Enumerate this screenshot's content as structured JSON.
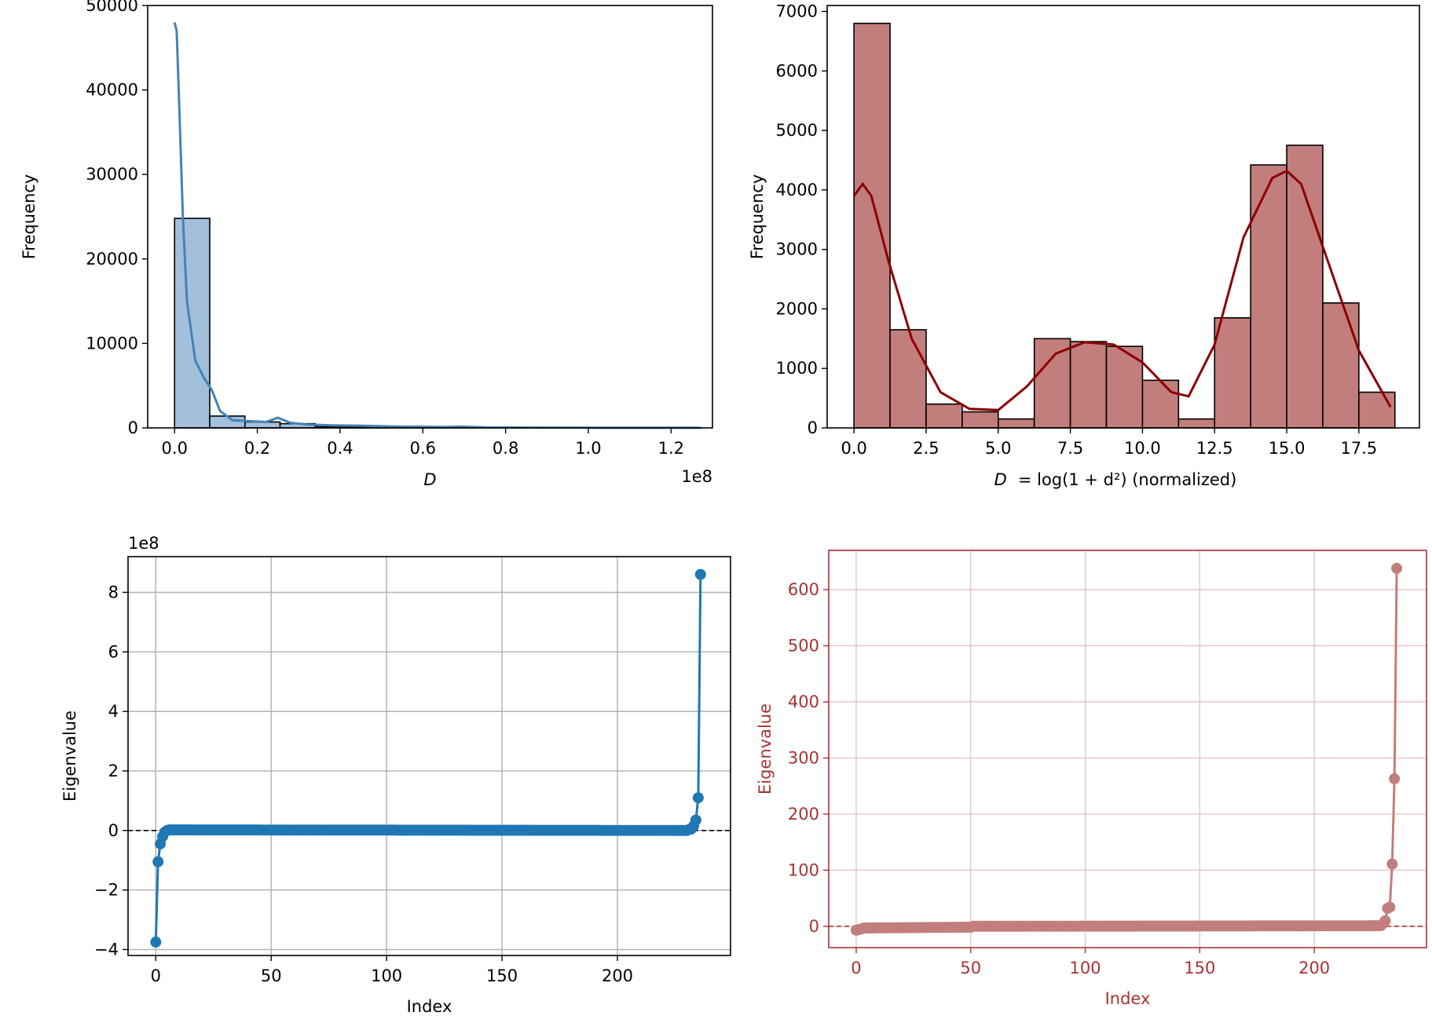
{
  "chart_data": [
    {
      "type": "bar",
      "id": "top-left",
      "xlabel": "D",
      "ylabel": "Frequency",
      "offset_label": "1e8",
      "xlim": [
        -0.065,
        1.3
      ],
      "ylim": [
        0,
        50000
      ],
      "xticks": [
        0.0,
        0.2,
        0.4,
        0.6,
        0.8,
        1.0,
        1.2
      ],
      "xtick_labels": [
        "0.0",
        "0.2",
        "0.4",
        "0.6",
        "0.8",
        "1.0",
        "1.2"
      ],
      "yticks": [
        0,
        10000,
        20000,
        30000,
        40000,
        50000
      ],
      "ytick_labels": [
        "0",
        "10000",
        "20000",
        "30000",
        "40000",
        "50000"
      ],
      "bin_edges": [
        0.0,
        0.085,
        0.17,
        0.255,
        0.34,
        0.425,
        0.51,
        0.595,
        0.68,
        0.765,
        0.85,
        0.935,
        1.02,
        1.105,
        1.19,
        1.275
      ],
      "counts": [
        24800,
        1400,
        700,
        500,
        150,
        120,
        60,
        40,
        30,
        20,
        15,
        10,
        8,
        5,
        5
      ],
      "kde": {
        "x": [
          0.0,
          0.005,
          0.01,
          0.02,
          0.03,
          0.05,
          0.07,
          0.09,
          0.11,
          0.14,
          0.18,
          0.22,
          0.25,
          0.28,
          0.32,
          0.38,
          0.45,
          0.55,
          0.65,
          0.69,
          0.75,
          0.85,
          1.0,
          1.15,
          1.27
        ],
        "y": [
          48000,
          47000,
          40000,
          25000,
          15000,
          8000,
          6000,
          4500,
          2000,
          900,
          800,
          700,
          1200,
          600,
          400,
          300,
          250,
          150,
          100,
          150,
          60,
          40,
          20,
          10,
          5
        ]
      },
      "colors": {
        "bar": "#a2bfdb",
        "kde": "#4682b4"
      }
    },
    {
      "type": "bar",
      "id": "top-right",
      "xlabel_math": "D",
      "xlabel_rest": "= log(1 + d²) (normalized)",
      "ylabel": "Frequency",
      "xlim": [
        -0.93,
        19.6
      ],
      "ylim": [
        0,
        7100
      ],
      "xticks": [
        0.0,
        2.5,
        5.0,
        7.5,
        10.0,
        12.5,
        15.0,
        17.5
      ],
      "xtick_labels": [
        "0.0",
        "2.5",
        "5.0",
        "7.5",
        "10.0",
        "12.5",
        "15.0",
        "17.5"
      ],
      "yticks": [
        0,
        1000,
        2000,
        3000,
        4000,
        5000,
        6000,
        7000
      ],
      "ytick_labels": [
        "0",
        "1000",
        "2000",
        "3000",
        "4000",
        "5000",
        "6000",
        "7000"
      ],
      "bin_edges": [
        0.0,
        1.25,
        2.5,
        3.75,
        5.0,
        6.25,
        7.5,
        8.75,
        10.0,
        11.25,
        12.5,
        13.75,
        15.0,
        16.25,
        17.5,
        18.75
      ],
      "counts": [
        6800,
        1650,
        400,
        270,
        150,
        1500,
        1450,
        1370,
        800,
        150,
        1850,
        4420,
        4750,
        2100,
        600
      ],
      "kde": {
        "x": [
          0.0,
          0.3,
          0.6,
          1.2,
          2.0,
          3.0,
          4.0,
          5.0,
          6.0,
          7.0,
          8.0,
          9.0,
          10.0,
          11.0,
          11.6,
          12.5,
          13.5,
          14.5,
          15.0,
          15.5,
          16.5,
          17.5,
          18.6
        ],
        "y": [
          3900,
          4100,
          3900,
          2800,
          1500,
          600,
          320,
          300,
          700,
          1250,
          1440,
          1400,
          1100,
          600,
          530,
          1400,
          3200,
          4200,
          4320,
          4100,
          2700,
          1300,
          350
        ]
      },
      "colors": {
        "bar": "#c27e7c",
        "kde": "#8b0000"
      }
    },
    {
      "type": "line",
      "id": "bottom-left",
      "xlabel": "Index",
      "ylabel": "Eigenvalue",
      "offset_label": "1e8",
      "xlim": [
        -12,
        249
      ],
      "ylim": [
        -4.2,
        9.2
      ],
      "xticks": [
        0,
        50,
        100,
        150,
        200
      ],
      "xtick_labels": [
        "0",
        "50",
        "100",
        "150",
        "200"
      ],
      "yticks": [
        -4,
        -2,
        0,
        2,
        4,
        6,
        8
      ],
      "ytick_labels": [
        "−4",
        "−2",
        "0",
        "2",
        "4",
        "6",
        "8"
      ],
      "hline": 0,
      "n_points": 237,
      "special_points": [
        {
          "x": 0,
          "y": -3.75
        },
        {
          "x": 1,
          "y": -1.05
        },
        {
          "x": 2,
          "y": -0.45
        },
        {
          "x": 3,
          "y": -0.2
        },
        {
          "x": 4,
          "y": -0.05
        },
        {
          "x": 5,
          "y": 0.0
        },
        {
          "x": 6,
          "y": 0.02
        },
        {
          "x": 7,
          "y": 0.02
        },
        {
          "x": 230,
          "y": 0.0
        },
        {
          "x": 231,
          "y": 0.03
        },
        {
          "x": 232,
          "y": 0.05
        },
        {
          "x": 233,
          "y": 0.15
        },
        {
          "x": 234,
          "y": 0.35
        },
        {
          "x": 235,
          "y": 1.1
        },
        {
          "x": 236,
          "y": 8.6
        }
      ],
      "colors": {
        "line": "#1f77b4",
        "grid": "#b0b0b0",
        "hline": "#000000",
        "axes": "#000000",
        "text": "#000000"
      }
    },
    {
      "type": "line",
      "id": "bottom-right",
      "xlabel": "Index",
      "ylabel": "Eigenvalue",
      "xlim": [
        -12,
        249
      ],
      "ylim": [
        -38,
        670
      ],
      "xticks": [
        0,
        50,
        100,
        150,
        200
      ],
      "xtick_labels": [
        "0",
        "50",
        "100",
        "150",
        "200"
      ],
      "yticks": [
        0,
        100,
        200,
        300,
        400,
        500,
        600
      ],
      "ytick_labels": [
        "0",
        "100",
        "200",
        "300",
        "400",
        "500",
        "600"
      ],
      "hline": 0,
      "n_points": 237,
      "special_points": [
        {
          "x": 0,
          "y": -7
        },
        {
          "x": 1,
          "y": -6
        },
        {
          "x": 2,
          "y": -5
        },
        {
          "x": 3,
          "y": -3.5
        },
        {
          "x": 4,
          "y": -3
        },
        {
          "x": 50,
          "y": -1.5
        },
        {
          "x": 51,
          "y": 0
        },
        {
          "x": 229,
          "y": 1
        },
        {
          "x": 230,
          "y": 5
        },
        {
          "x": 231,
          "y": 10
        },
        {
          "x": 232,
          "y": 32
        },
        {
          "x": 233,
          "y": 34
        },
        {
          "x": 234,
          "y": 111
        },
        {
          "x": 235,
          "y": 263
        },
        {
          "x": 236,
          "y": 638
        }
      ],
      "colors": {
        "line": "#c27e7c",
        "grid": "#e8c4c4",
        "hline": "#a83232",
        "axes": "#a83232",
        "text": "#a83232"
      }
    }
  ]
}
